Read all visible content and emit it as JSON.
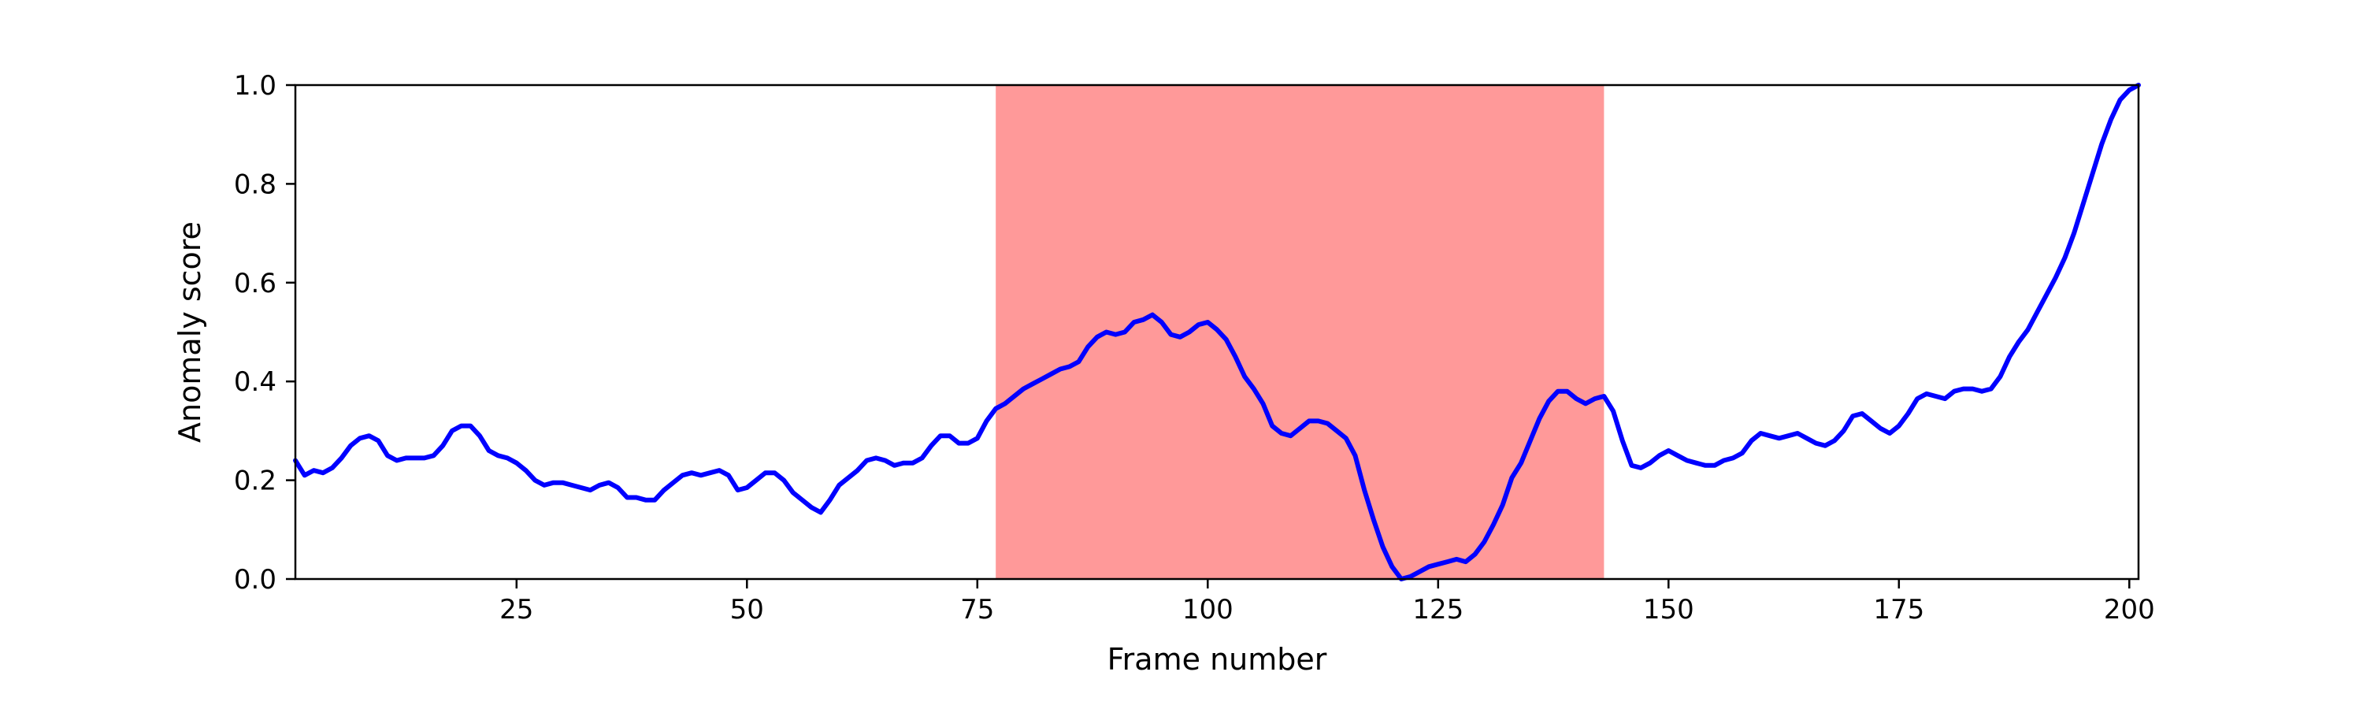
{
  "chart_data": {
    "type": "line",
    "title": "",
    "xlabel": "Frame number",
    "ylabel": "Anomaly score",
    "xlim": [
      1,
      201
    ],
    "ylim": [
      0.0,
      1.0
    ],
    "grid": false,
    "x_ticks": [
      25,
      50,
      75,
      100,
      125,
      150,
      175,
      200
    ],
    "x_tick_labels": [
      "25",
      "50",
      "75",
      "100",
      "125",
      "150",
      "175",
      "200"
    ],
    "y_ticks": [
      0.0,
      0.2,
      0.4,
      0.6,
      0.8,
      1.0
    ],
    "y_tick_labels": [
      "0.0",
      "0.2",
      "0.4",
      "0.6",
      "0.8",
      "1.0"
    ],
    "anomaly_region": {
      "x_start": 77,
      "x_end": 143,
      "color": "#ff9999"
    },
    "series": [
      {
        "color": "#0000ff",
        "x": [
          1,
          2,
          3,
          4,
          5,
          6,
          7,
          8,
          9,
          10,
          11,
          12,
          13,
          14,
          15,
          16,
          17,
          18,
          19,
          20,
          21,
          22,
          23,
          24,
          25,
          26,
          27,
          28,
          29,
          30,
          31,
          32,
          33,
          34,
          35,
          36,
          37,
          38,
          39,
          40,
          41,
          42,
          43,
          44,
          45,
          46,
          47,
          48,
          49,
          50,
          51,
          52,
          53,
          54,
          55,
          56,
          57,
          58,
          59,
          60,
          61,
          62,
          63,
          64,
          65,
          66,
          67,
          68,
          69,
          70,
          71,
          72,
          73,
          74,
          75,
          76,
          77,
          78,
          79,
          80,
          81,
          82,
          83,
          84,
          85,
          86,
          87,
          88,
          89,
          90,
          91,
          92,
          93,
          94,
          95,
          96,
          97,
          98,
          99,
          100,
          101,
          102,
          103,
          104,
          105,
          106,
          107,
          108,
          109,
          110,
          111,
          112,
          113,
          114,
          115,
          116,
          117,
          118,
          119,
          120,
          121,
          122,
          123,
          124,
          125,
          126,
          127,
          128,
          129,
          130,
          131,
          132,
          133,
          134,
          135,
          136,
          137,
          138,
          139,
          140,
          141,
          142,
          143,
          144,
          145,
          146,
          147,
          148,
          149,
          150,
          151,
          152,
          153,
          154,
          155,
          156,
          157,
          158,
          159,
          160,
          161,
          162,
          163,
          164,
          165,
          166,
          167,
          168,
          169,
          170,
          171,
          172,
          173,
          174,
          175,
          176,
          177,
          178,
          179,
          180,
          181,
          182,
          183,
          184,
          185,
          186,
          187,
          188,
          189,
          190,
          191,
          192,
          193,
          194,
          195,
          196,
          197,
          198,
          199,
          200,
          201
        ],
        "y": [
          0.24,
          0.21,
          0.22,
          0.215,
          0.225,
          0.245,
          0.27,
          0.285,
          0.29,
          0.28,
          0.25,
          0.24,
          0.245,
          0.245,
          0.245,
          0.25,
          0.27,
          0.3,
          0.31,
          0.31,
          0.29,
          0.26,
          0.25,
          0.245,
          0.235,
          0.22,
          0.2,
          0.19,
          0.195,
          0.195,
          0.19,
          0.185,
          0.18,
          0.19,
          0.195,
          0.185,
          0.165,
          0.165,
          0.16,
          0.16,
          0.18,
          0.195,
          0.21,
          0.215,
          0.21,
          0.215,
          0.22,
          0.21,
          0.18,
          0.185,
          0.2,
          0.215,
          0.215,
          0.2,
          0.175,
          0.16,
          0.145,
          0.135,
          0.16,
          0.19,
          0.205,
          0.22,
          0.24,
          0.245,
          0.24,
          0.23,
          0.235,
          0.235,
          0.245,
          0.27,
          0.29,
          0.29,
          0.275,
          0.275,
          0.285,
          0.32,
          0.345,
          0.355,
          0.37,
          0.385,
          0.395,
          0.405,
          0.415,
          0.425,
          0.43,
          0.44,
          0.47,
          0.49,
          0.5,
          0.495,
          0.5,
          0.52,
          0.525,
          0.535,
          0.52,
          0.495,
          0.49,
          0.5,
          0.515,
          0.52,
          0.505,
          0.485,
          0.45,
          0.41,
          0.385,
          0.355,
          0.31,
          0.295,
          0.29,
          0.305,
          0.32,
          0.32,
          0.315,
          0.3,
          0.285,
          0.25,
          0.18,
          0.12,
          0.065,
          0.025,
          0.0,
          0.005,
          0.015,
          0.025,
          0.03,
          0.035,
          0.04,
          0.035,
          0.05,
          0.075,
          0.11,
          0.15,
          0.205,
          0.235,
          0.28,
          0.325,
          0.36,
          0.38,
          0.38,
          0.365,
          0.355,
          0.365,
          0.37,
          0.34,
          0.28,
          0.23,
          0.225,
          0.235,
          0.25,
          0.26,
          0.25,
          0.24,
          0.235,
          0.23,
          0.23,
          0.24,
          0.245,
          0.255,
          0.28,
          0.295,
          0.29,
          0.285,
          0.29,
          0.295,
          0.285,
          0.275,
          0.27,
          0.28,
          0.3,
          0.33,
          0.335,
          0.32,
          0.305,
          0.295,
          0.31,
          0.335,
          0.365,
          0.375,
          0.37,
          0.365,
          0.38,
          0.385,
          0.385,
          0.38,
          0.385,
          0.41,
          0.45,
          0.48,
          0.505,
          0.54,
          0.575,
          0.61,
          0.65,
          0.7,
          0.76,
          0.82,
          0.88,
          0.93,
          0.97,
          0.99,
          1.0
        ]
      }
    ]
  }
}
